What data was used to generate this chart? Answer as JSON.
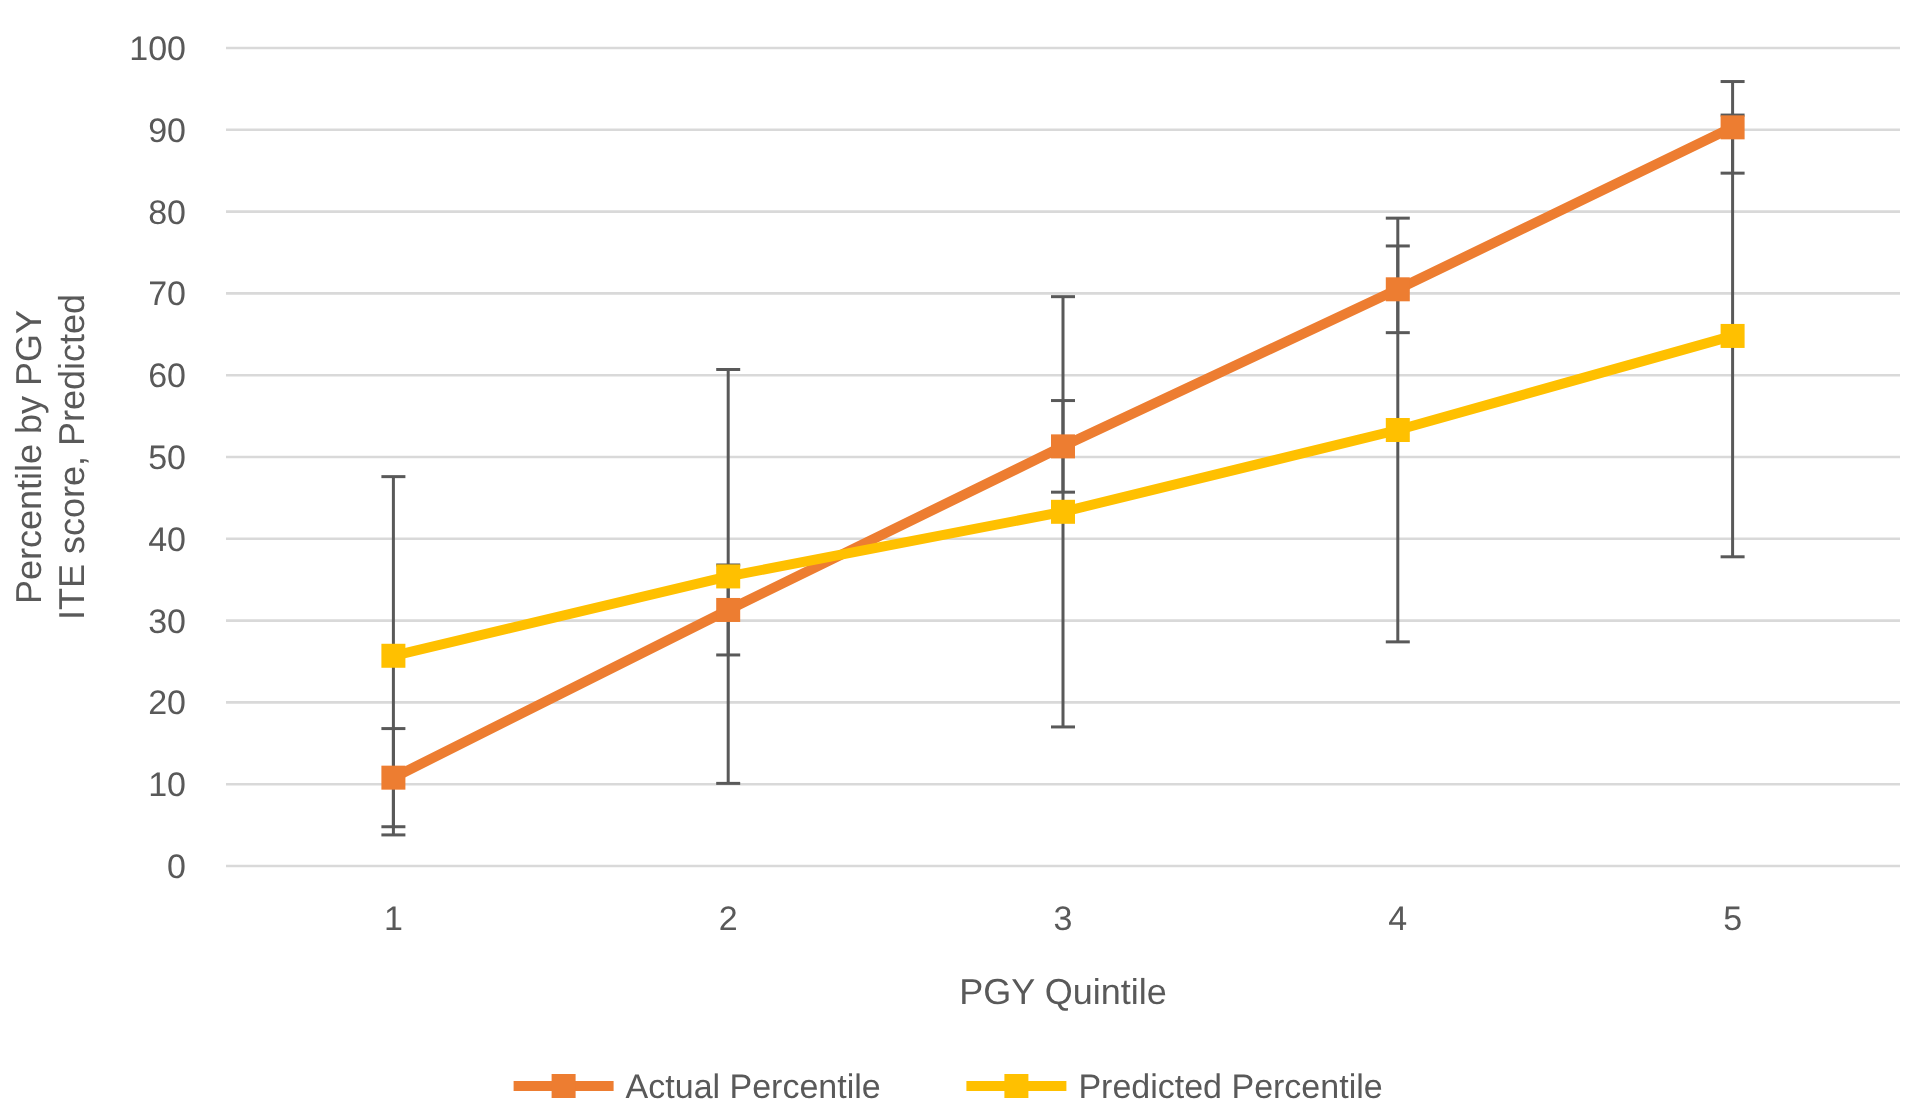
{
  "chart_data": {
    "type": "line",
    "xlabel": "PGY Quintile",
    "ylabel": "Percentile by PGY ITE score, Predicted",
    "categories": [
      "1",
      "2",
      "3",
      "4",
      "5"
    ],
    "series": [
      {
        "name": "Actual Percentile",
        "color": "#ed7d31",
        "values": [
          10.8,
          31.3,
          51.3,
          70.5,
          90.3
        ],
        "errors": [
          6,
          5.5,
          5.6,
          5.3,
          5.6
        ]
      },
      {
        "name": "Predicted Percentile",
        "color": "#ffc000",
        "values": [
          25.7,
          35.4,
          43.3,
          53.3,
          64.8
        ],
        "errors": [
          21.9,
          25.3,
          26.3,
          25.9,
          27
        ]
      }
    ],
    "ylim": [
      0,
      100
    ],
    "yticks": [
      0,
      10,
      20,
      30,
      40,
      50,
      60,
      70,
      80,
      90,
      100
    ],
    "grid": "y",
    "legend": "bottom",
    "marker": "square",
    "line_style": "solid"
  }
}
